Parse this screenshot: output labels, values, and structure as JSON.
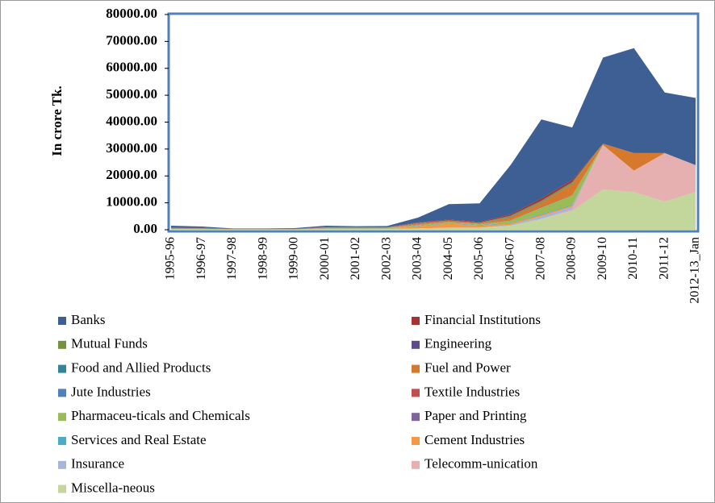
{
  "chart_data": {
    "type": "stacked_area",
    "ylabel": "In crore Tk.",
    "categories": [
      "1995-96",
      "1996-97",
      "1997-98",
      "1998-99",
      "1999-00",
      "2000-01",
      "2001-02",
      "2002-03",
      "2003-04",
      "2004-05",
      "2005-06",
      "2006-07",
      "2007-08",
      "2008-09",
      "2009-10",
      "2010-11",
      "2011-12",
      "2012-13_Jan"
    ],
    "ylim": [
      0,
      80000
    ],
    "yticks": [
      {
        "value": 0,
        "label": "0.00"
      },
      {
        "value": 10000,
        "label": "10000.00"
      },
      {
        "value": 20000,
        "label": "20000.00"
      },
      {
        "value": 30000,
        "label": "30000.00"
      },
      {
        "value": 40000,
        "label": "40000.00"
      },
      {
        "value": 50000,
        "label": "50000.00"
      },
      {
        "value": 60000,
        "label": "60000.00"
      },
      {
        "value": 70000,
        "label": "70000.00"
      },
      {
        "value": 80000,
        "label": "80000.00"
      }
    ],
    "series": [
      {
        "name": "Banks",
        "color": "#3d5f94",
        "values": [
          700,
          500,
          150,
          150,
          250,
          500,
          300,
          400,
          1800,
          5700,
          6900,
          18300,
          29400,
          19500,
          32000,
          39000,
          22500,
          25000
        ]
      },
      {
        "name": "Financial Institutions",
        "color": "#a83232",
        "values": [
          100,
          100,
          50,
          50,
          50,
          100,
          100,
          100,
          200,
          300,
          300,
          500,
          800,
          800,
          0,
          0,
          0,
          0
        ]
      },
      {
        "name": "Mutual Funds",
        "color": "#76923c",
        "values": [
          0,
          0,
          0,
          0,
          0,
          0,
          0,
          0,
          0,
          0,
          0,
          300,
          500,
          500,
          0,
          0,
          0,
          0
        ]
      },
      {
        "name": "Engineering",
        "color": "#5f4b8b",
        "values": [
          0,
          0,
          0,
          0,
          0,
          0,
          0,
          0,
          0,
          0,
          0,
          0,
          0,
          0,
          0,
          0,
          0,
          0
        ]
      },
      {
        "name": "Food and Allied Products",
        "color": "#31849b",
        "values": [
          100,
          100,
          50,
          50,
          50,
          100,
          100,
          100,
          100,
          100,
          100,
          200,
          200,
          200,
          0,
          0,
          0,
          0
        ]
      },
      {
        "name": "Fuel and Power",
        "color": "#d6792c",
        "values": [
          0,
          0,
          0,
          0,
          0,
          0,
          0,
          0,
          500,
          500,
          300,
          1000,
          1500,
          4000,
          500,
          6500,
          0,
          0
        ]
      },
      {
        "name": "Jute Industries",
        "color": "#4f81bd",
        "values": [
          0,
          0,
          0,
          0,
          0,
          0,
          0,
          0,
          0,
          0,
          0,
          0,
          0,
          0,
          0,
          0,
          0,
          0
        ]
      },
      {
        "name": "Textile Industries",
        "color": "#c0504d",
        "values": [
          100,
          100,
          50,
          50,
          50,
          100,
          100,
          100,
          100,
          100,
          100,
          200,
          300,
          200,
          0,
          0,
          0,
          0
        ]
      },
      {
        "name": "Pharmaceu-ticals and Chemicals",
        "color": "#9bbb59",
        "values": [
          200,
          200,
          100,
          100,
          100,
          200,
          200,
          200,
          300,
          300,
          300,
          1000,
          2500,
          3500,
          0,
          0,
          0,
          0
        ]
      },
      {
        "name": "Paper and Printing",
        "color": "#8064a2",
        "values": [
          0,
          0,
          0,
          0,
          0,
          0,
          0,
          0,
          0,
          0,
          0,
          0,
          0,
          0,
          0,
          0,
          0,
          0
        ]
      },
      {
        "name": "Services and Real Estate",
        "color": "#4bacc6",
        "values": [
          0,
          0,
          0,
          0,
          0,
          0,
          0,
          0,
          200,
          200,
          200,
          200,
          300,
          300,
          0,
          0,
          0,
          0
        ]
      },
      {
        "name": "Cement Industries",
        "color": "#f79646",
        "values": [
          0,
          0,
          0,
          0,
          0,
          200,
          200,
          200,
          800,
          1500,
          800,
          500,
          500,
          500,
          0,
          0,
          0,
          0
        ]
      },
      {
        "name": "Insurance",
        "color": "#a5b6d9",
        "values": [
          0,
          0,
          0,
          0,
          0,
          0,
          0,
          0,
          0,
          0,
          0,
          300,
          1000,
          1000,
          0,
          0,
          0,
          0
        ]
      },
      {
        "name": "Telecomm-unication",
        "color": "#e6b0b0",
        "values": [
          0,
          0,
          0,
          0,
          0,
          0,
          0,
          0,
          0,
          0,
          0,
          0,
          0,
          500,
          16500,
          8000,
          18000,
          10000
        ]
      },
      {
        "name": "Miscella-neous",
        "color": "#c3d69b",
        "values": [
          300,
          200,
          100,
          100,
          100,
          300,
          300,
          300,
          500,
          800,
          800,
          1500,
          4000,
          7000,
          15000,
          14000,
          10500,
          14000
        ]
      }
    ]
  }
}
